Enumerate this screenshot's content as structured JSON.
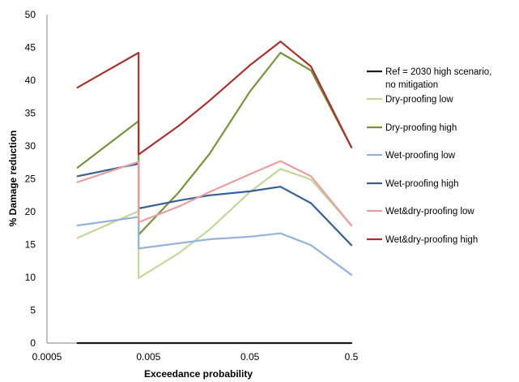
{
  "chart_data": {
    "type": "line",
    "xlabel": "Exceedance probability",
    "ylabel": "% Damage reduction",
    "xscale": "log",
    "xlim": [
      0.0005,
      0.5
    ],
    "ylim": [
      0,
      50
    ],
    "x_ticks": [
      "0.0005",
      "0.005",
      "0.05",
      "0.5"
    ],
    "y_ticks": [
      "0",
      "5",
      "10",
      "15",
      "20",
      "25",
      "30",
      "35",
      "40",
      "45",
      "50"
    ],
    "grid": false,
    "legend_position": "right",
    "series": [
      {
        "name": "Ref = 2030 high scenario, no mitigation",
        "name_lines": [
          "Ref = 2030 high scenario,",
          "no mitigation"
        ],
        "color": "#1a1a1a",
        "points": [
          [
            0.001,
            0
          ],
          [
            0.004,
            0
          ],
          [
            0.004,
            0
          ],
          [
            0.01,
            0
          ],
          [
            0.02,
            0
          ],
          [
            0.05,
            0
          ],
          [
            0.1,
            0
          ],
          [
            0.2,
            0
          ],
          [
            0.5,
            0
          ]
        ]
      },
      {
        "name": "Dry-proofing low",
        "name_lines": [
          "Dry-proofing low"
        ],
        "color": "#c3d69b",
        "points": [
          [
            0.001,
            16.0
          ],
          [
            0.004,
            20.1
          ],
          [
            0.004,
            9.9
          ],
          [
            0.01,
            13.7
          ],
          [
            0.02,
            17.3
          ],
          [
            0.05,
            23.0
          ],
          [
            0.1,
            26.5
          ],
          [
            0.2,
            24.9
          ],
          [
            0.5,
            17.9
          ]
        ]
      },
      {
        "name": "Dry-proofing high",
        "name_lines": [
          "Dry-proofing high"
        ],
        "color": "#77933c",
        "points": [
          [
            0.001,
            26.7
          ],
          [
            0.004,
            33.8
          ],
          [
            0.004,
            16.5
          ],
          [
            0.01,
            23.0
          ],
          [
            0.02,
            28.8
          ],
          [
            0.05,
            38.3
          ],
          [
            0.1,
            44.2
          ],
          [
            0.2,
            41.5
          ],
          [
            0.5,
            29.8
          ]
        ]
      },
      {
        "name": "Wet-proofing low",
        "name_lines": [
          "Wet-proofing low"
        ],
        "color": "#95b3d7",
        "points": [
          [
            0.001,
            17.9
          ],
          [
            0.004,
            19.2
          ],
          [
            0.004,
            14.4
          ],
          [
            0.01,
            15.2
          ],
          [
            0.02,
            15.8
          ],
          [
            0.05,
            16.2
          ],
          [
            0.1,
            16.7
          ],
          [
            0.2,
            14.9
          ],
          [
            0.5,
            10.4
          ]
        ]
      },
      {
        "name": "Wet-proofing high",
        "name_lines": [
          "Wet-proofing high"
        ],
        "color": "#376092",
        "points": [
          [
            0.001,
            25.4
          ],
          [
            0.004,
            27.3
          ],
          [
            0.004,
            20.5
          ],
          [
            0.01,
            21.7
          ],
          [
            0.02,
            22.5
          ],
          [
            0.05,
            23.1
          ],
          [
            0.1,
            23.8
          ],
          [
            0.2,
            21.3
          ],
          [
            0.5,
            14.9
          ]
        ]
      },
      {
        "name": "Wet&dry-proofing low",
        "name_lines": [
          "Wet&dry-proofing low"
        ],
        "color": "#e6a0a0",
        "points": [
          [
            0.001,
            24.5
          ],
          [
            0.004,
            27.6
          ],
          [
            0.004,
            18.4
          ],
          [
            0.01,
            20.8
          ],
          [
            0.02,
            23.0
          ],
          [
            0.05,
            25.7
          ],
          [
            0.1,
            27.7
          ],
          [
            0.2,
            25.4
          ],
          [
            0.5,
            17.9
          ]
        ]
      },
      {
        "name": "Wet&dry-proofing high",
        "name_lines": [
          "Wet&dry-proofing high"
        ],
        "color": "#a5322e",
        "points": [
          [
            0.001,
            38.9
          ],
          [
            0.004,
            44.2
          ],
          [
            0.004,
            28.7
          ],
          [
            0.01,
            33.1
          ],
          [
            0.02,
            36.9
          ],
          [
            0.05,
            42.3
          ],
          [
            0.1,
            45.9
          ],
          [
            0.2,
            42.1
          ],
          [
            0.5,
            29.8
          ]
        ]
      }
    ]
  }
}
